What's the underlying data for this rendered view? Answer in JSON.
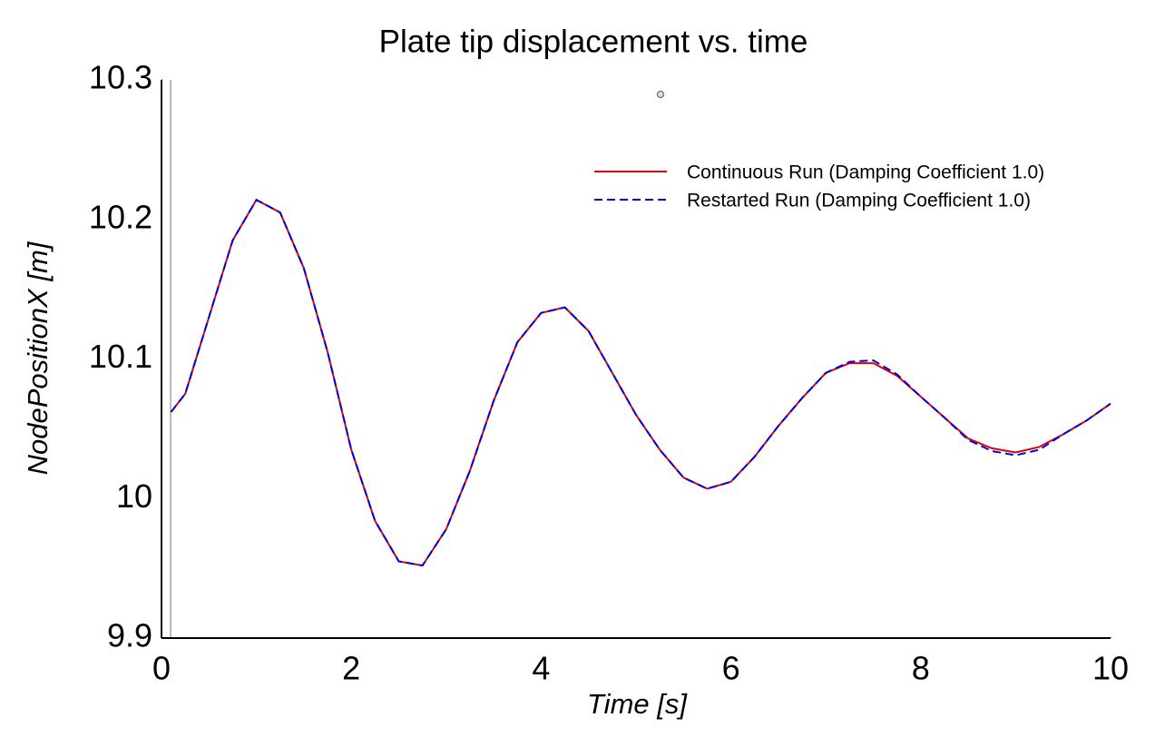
{
  "chart_data": {
    "type": "line",
    "title": "Plate tip displacement vs. time",
    "x_label": "Time [s]",
    "y_label": "NodePositionX [m]",
    "x": [
      0.1,
      0.25,
      0.5,
      0.75,
      1.0,
      1.25,
      1.5,
      1.75,
      2.0,
      2.25,
      2.5,
      2.75,
      3.0,
      3.25,
      3.5,
      3.75,
      4.0,
      4.25,
      4.5,
      4.75,
      5.0,
      5.25,
      5.5,
      5.75,
      6.0,
      6.25,
      6.5,
      6.75,
      7.0,
      7.25,
      7.5,
      7.75,
      8.0,
      8.25,
      8.5,
      8.75,
      9.0,
      9.25,
      9.5,
      9.75,
      10.0
    ],
    "series": [
      {
        "name": "Continuous Run (Damping Coefficient 1.0)",
        "color": "#e00000",
        "dashed": false,
        "values": [
          10.062,
          10.075,
          10.13,
          10.185,
          10.214,
          10.205,
          10.165,
          10.105,
          10.035,
          9.984,
          9.955,
          9.952,
          9.978,
          10.02,
          10.07,
          10.112,
          10.133,
          10.137,
          10.12,
          10.09,
          10.06,
          10.035,
          10.015,
          10.007,
          10.012,
          10.03,
          10.052,
          10.072,
          10.09,
          10.097,
          10.097,
          10.088,
          10.073,
          10.058,
          10.043,
          10.036,
          10.033,
          10.037,
          10.046,
          10.056,
          10.068
        ]
      },
      {
        "name": "Restarted Run (Damping Coefficient 1.0)",
        "color": "#0000e0",
        "dashed": true,
        "values": [
          10.062,
          10.075,
          10.13,
          10.185,
          10.214,
          10.205,
          10.165,
          10.105,
          10.035,
          9.984,
          9.955,
          9.952,
          9.978,
          10.02,
          10.07,
          10.112,
          10.133,
          10.137,
          10.12,
          10.09,
          10.06,
          10.035,
          10.015,
          10.007,
          10.012,
          10.03,
          10.052,
          10.072,
          10.09,
          10.098,
          10.099,
          10.089,
          10.073,
          10.058,
          10.042,
          10.034,
          10.031,
          10.035,
          10.046,
          10.056,
          10.068
        ]
      }
    ],
    "xlim": [
      0,
      10
    ],
    "xticks": [
      0,
      2,
      4,
      6,
      8,
      10
    ],
    "ylim": [
      9.9,
      10.3
    ],
    "yticks": [
      9.9,
      10,
      10.1,
      10.2,
      10.3
    ],
    "grid": false,
    "legend": "upper right"
  }
}
